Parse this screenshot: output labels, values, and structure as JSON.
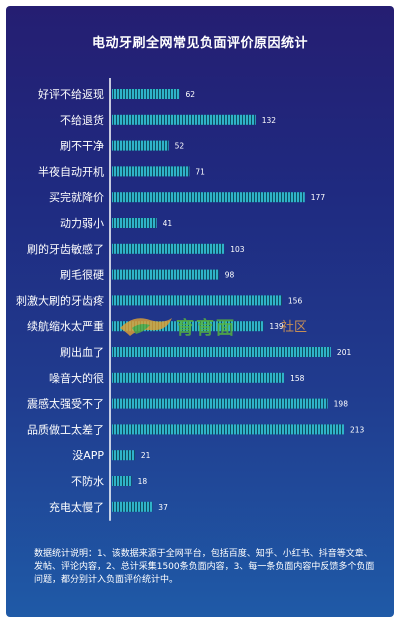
{
  "chart_data": {
    "type": "bar",
    "orientation": "horizontal",
    "title": "电动牙刷全网常见负面评价原因统计",
    "categories": [
      "好评不给返现",
      "不给退货",
      "刷不干净",
      "半夜自动开机",
      "买完就降价",
      "动力弱小",
      "刷的牙齿敏感了",
      "刷毛很硬",
      "刺激大刷的牙齿疼",
      "续航缩水太严重",
      "刷出血了",
      "噪音大的很",
      "震感太强受不了",
      "品质做工太差了",
      "没APP",
      "不防水",
      "充电太慢了"
    ],
    "values": [
      62,
      132,
      52,
      71,
      177,
      41,
      103,
      98,
      156,
      139,
      201,
      158,
      198,
      213,
      21,
      18,
      37
    ],
    "bar_color": "#2fb3c9",
    "stripe_color": "#0f4a5e",
    "axis_color": "#ffffff",
    "grid": false,
    "legend": "none"
  },
  "footnote": "数据统计说明：1、该数据来源于全网平台，包括百度、知乎、小红书、抖音等文章、发帖、评论内容，2、总计采集1500条负面内容，3、每一条负面内容中反馈多个负面问题，都分别计入负面评价统计中。",
  "watermark": {
    "text": "育育面",
    "sub": "社区"
  }
}
